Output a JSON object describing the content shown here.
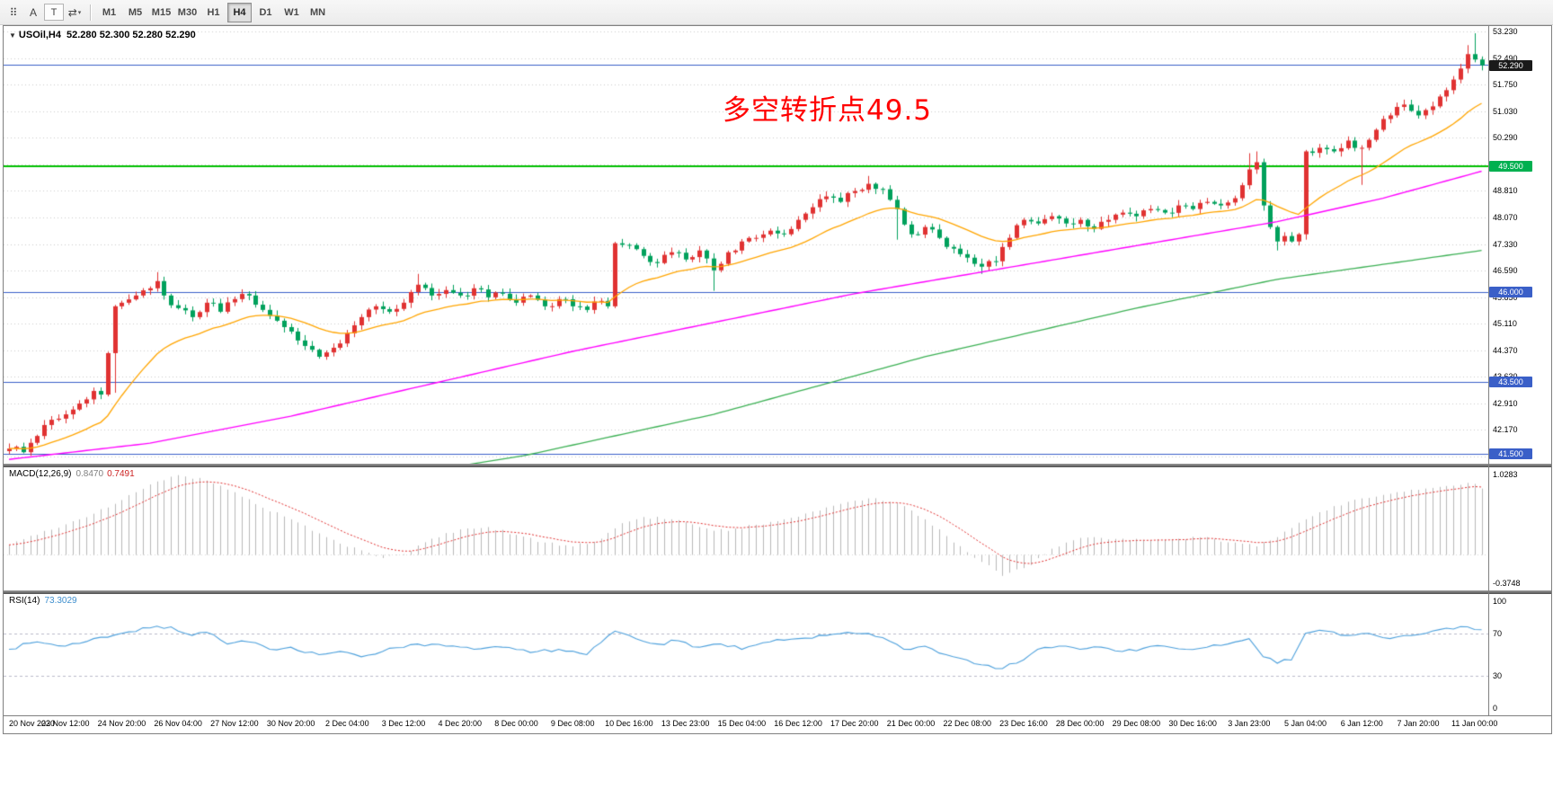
{
  "toolbar": {
    "icons": [
      {
        "name": "toolbar-grip",
        "glyph": "⠿"
      },
      {
        "name": "annotation-tool-icon",
        "glyph": "A"
      },
      {
        "name": "text-tool-icon",
        "glyph": "T",
        "boxed": true
      },
      {
        "name": "symbol-cycle-icon",
        "glyph": "⇄",
        "caret": "▾"
      }
    ],
    "timeframes": [
      {
        "label": "M1"
      },
      {
        "label": "M5"
      },
      {
        "label": "M15"
      },
      {
        "label": "M30"
      },
      {
        "label": "H1"
      },
      {
        "label": "H4",
        "active": true
      },
      {
        "label": "D1"
      },
      {
        "label": "W1"
      },
      {
        "label": "MN"
      }
    ]
  },
  "main_chart": {
    "collapse_icon": "▼",
    "title_symbol": "USOil,H4",
    "title_quote": "52.280 52.300 52.280 52.290",
    "annotation": {
      "text": "多空转折点49.5",
      "color": "#ff0000"
    },
    "axis": {
      "min": 41.43,
      "max": 53.23,
      "labels": [
        "53.230",
        "52.490",
        "51.750",
        "51.030",
        "50.290",
        "",
        "48.810",
        "48.070",
        "47.330",
        "46.590",
        "45.850",
        "45.110",
        "44.370",
        "43.630",
        "42.910",
        "42.170",
        "41.430"
      ]
    },
    "current_price": {
      "value": 52.29,
      "label": "52.290",
      "badge_bg": "#1a1a1a"
    },
    "levels": [
      {
        "price": 52.3,
        "color": "#3a5fc8",
        "width": 1,
        "label": ""
      },
      {
        "price": 49.5,
        "color": "#00c000",
        "width": 2,
        "label": "49.500",
        "badge_bg": "#00b050"
      },
      {
        "price": 46.0,
        "color": "#3a5fc8",
        "width": 1,
        "label": "46.000",
        "badge_bg": "#3a5fc8"
      },
      {
        "price": 43.5,
        "color": "#3a5fc8",
        "width": 1,
        "label": "43.500",
        "badge_bg": "#3a5fc8"
      },
      {
        "price": 41.5,
        "color": "#3a5fc8",
        "width": 1,
        "label": "41.500",
        "badge_bg": "#3a5fc8"
      }
    ],
    "colors": {
      "up": "#e03232",
      "down": "#00a15c",
      "ma_fast": "#ffa500",
      "ma_mid": "#ff00ff",
      "ma_slow": "#3cb054",
      "grid": "#cccccc"
    }
  },
  "chart_data": {
    "type": "candlestick",
    "symbol": "USOil",
    "timeframe": "H4",
    "bars": 210,
    "close_anchors": [
      [
        0,
        41.65
      ],
      [
        2,
        41.55
      ],
      [
        4,
        42.0
      ],
      [
        6,
        42.45
      ],
      [
        8,
        42.6
      ],
      [
        10,
        42.9
      ],
      [
        12,
        43.25
      ],
      [
        13,
        43.15
      ],
      [
        14,
        44.3
      ],
      [
        15,
        45.6
      ],
      [
        16,
        45.7
      ],
      [
        18,
        45.9
      ],
      [
        20,
        46.1
      ],
      [
        21,
        46.3
      ],
      [
        22,
        45.9
      ],
      [
        24,
        45.55
      ],
      [
        26,
        45.3
      ],
      [
        28,
        45.7
      ],
      [
        30,
        45.45
      ],
      [
        32,
        45.8
      ],
      [
        34,
        45.9
      ],
      [
        36,
        45.5
      ],
      [
        38,
        45.2
      ],
      [
        40,
        44.9
      ],
      [
        42,
        44.5
      ],
      [
        44,
        44.2
      ],
      [
        46,
        44.45
      ],
      [
        48,
        44.85
      ],
      [
        50,
        45.3
      ],
      [
        52,
        45.6
      ],
      [
        54,
        45.45
      ],
      [
        56,
        45.7
      ],
      [
        58,
        46.2
      ],
      [
        60,
        45.9
      ],
      [
        62,
        46.05
      ],
      [
        64,
        45.9
      ],
      [
        66,
        46.1
      ],
      [
        68,
        45.85
      ],
      [
        70,
        45.95
      ],
      [
        72,
        45.7
      ],
      [
        74,
        45.9
      ],
      [
        76,
        45.6
      ],
      [
        78,
        45.8
      ],
      [
        80,
        45.6
      ],
      [
        82,
        45.5
      ],
      [
        84,
        45.75
      ],
      [
        85,
        45.6
      ],
      [
        86,
        47.35
      ],
      [
        88,
        47.3
      ],
      [
        90,
        47.0
      ],
      [
        92,
        46.8
      ],
      [
        94,
        47.1
      ],
      [
        96,
        46.9
      ],
      [
        98,
        47.15
      ],
      [
        100,
        46.6
      ],
      [
        102,
        47.1
      ],
      [
        104,
        47.4
      ],
      [
        106,
        47.5
      ],
      [
        108,
        47.7
      ],
      [
        110,
        47.6
      ],
      [
        112,
        48.0
      ],
      [
        114,
        48.35
      ],
      [
        116,
        48.65
      ],
      [
        118,
        48.5
      ],
      [
        120,
        48.8
      ],
      [
        122,
        49.0
      ],
      [
        124,
        48.85
      ],
      [
        126,
        48.3
      ],
      [
        128,
        47.6
      ],
      [
        130,
        47.8
      ],
      [
        132,
        47.5
      ],
      [
        134,
        47.2
      ],
      [
        136,
        46.95
      ],
      [
        138,
        46.7
      ],
      [
        140,
        46.85
      ],
      [
        142,
        47.5
      ],
      [
        144,
        48.0
      ],
      [
        146,
        47.9
      ],
      [
        148,
        48.1
      ],
      [
        150,
        47.9
      ],
      [
        152,
        48.0
      ],
      [
        154,
        47.75
      ],
      [
        156,
        48.0
      ],
      [
        158,
        48.2
      ],
      [
        160,
        48.1
      ],
      [
        162,
        48.3
      ],
      [
        164,
        48.2
      ],
      [
        166,
        48.4
      ],
      [
        168,
        48.3
      ],
      [
        170,
        48.5
      ],
      [
        172,
        48.4
      ],
      [
        174,
        48.6
      ],
      [
        176,
        49.4
      ],
      [
        177,
        49.6
      ],
      [
        178,
        48.4
      ],
      [
        179,
        47.8
      ],
      [
        180,
        47.4
      ],
      [
        181,
        47.55
      ],
      [
        182,
        47.4
      ],
      [
        183,
        47.6
      ],
      [
        184,
        49.9
      ],
      [
        186,
        50.0
      ],
      [
        188,
        49.9
      ],
      [
        190,
        50.2
      ],
      [
        192,
        50.0
      ],
      [
        194,
        50.5
      ],
      [
        196,
        50.9
      ],
      [
        198,
        51.2
      ],
      [
        200,
        50.9
      ],
      [
        202,
        51.15
      ],
      [
        204,
        51.6
      ],
      [
        206,
        52.2
      ],
      [
        207,
        52.6
      ],
      [
        208,
        52.45
      ],
      [
        209,
        52.29
      ]
    ],
    "wick_overrides": [
      {
        "i": 15,
        "low": 43.2
      },
      {
        "i": 21,
        "high": 46.55
      },
      {
        "i": 58,
        "high": 46.5
      },
      {
        "i": 86,
        "low": 45.55
      },
      {
        "i": 100,
        "low": 46.03
      },
      {
        "i": 122,
        "high": 49.22
      },
      {
        "i": 126,
        "low": 47.45
      },
      {
        "i": 138,
        "low": 46.5
      },
      {
        "i": 176,
        "high": 49.85
      },
      {
        "i": 177,
        "high": 49.9
      },
      {
        "i": 180,
        "low": 47.15
      },
      {
        "i": 184,
        "low": 47.45
      },
      {
        "i": 192,
        "low": 48.97
      },
      {
        "i": 207,
        "high": 52.85
      },
      {
        "i": 208,
        "high": 53.18
      }
    ],
    "ma_mid_anchors": [
      [
        0,
        41.35
      ],
      [
        20,
        41.8
      ],
      [
        40,
        42.55
      ],
      [
        60,
        43.45
      ],
      [
        80,
        44.35
      ],
      [
        100,
        45.15
      ],
      [
        120,
        45.95
      ],
      [
        135,
        46.45
      ],
      [
        150,
        46.95
      ],
      [
        165,
        47.45
      ],
      [
        180,
        47.95
      ],
      [
        195,
        48.6
      ],
      [
        209,
        49.35
      ]
    ],
    "ma_slow_anchors": [
      [
        0,
        40.1
      ],
      [
        40,
        40.6
      ],
      [
        60,
        41.05
      ],
      [
        73,
        41.45
      ],
      [
        100,
        42.6
      ],
      [
        130,
        44.2
      ],
      [
        160,
        45.55
      ],
      [
        180,
        46.35
      ],
      [
        209,
        47.15
      ]
    ],
    "macd": {
      "label": "MACD(12,26,9)",
      "value_main": "0.8470",
      "value_signal": "0.7491",
      "axis_max": 1.0283,
      "axis_min": -0.3748,
      "axis_labels": [
        {
          "text": "1.0283",
          "value": 1.0283
        },
        {
          "text": "-0.3748",
          "value": -0.3748
        }
      ],
      "anchors": [
        [
          0,
          0.12
        ],
        [
          5,
          0.3
        ],
        [
          10,
          0.45
        ],
        [
          15,
          0.65
        ],
        [
          20,
          0.9
        ],
        [
          24,
          1.02
        ],
        [
          28,
          0.95
        ],
        [
          32,
          0.8
        ],
        [
          36,
          0.6
        ],
        [
          40,
          0.45
        ],
        [
          45,
          0.22
        ],
        [
          50,
          0.05
        ],
        [
          53,
          -0.05
        ],
        [
          56,
          0.0
        ],
        [
          60,
          0.2
        ],
        [
          64,
          0.32
        ],
        [
          68,
          0.35
        ],
        [
          72,
          0.25
        ],
        [
          76,
          0.15
        ],
        [
          80,
          0.1
        ],
        [
          84,
          0.2
        ],
        [
          87,
          0.4
        ],
        [
          90,
          0.48
        ],
        [
          94,
          0.45
        ],
        [
          98,
          0.35
        ],
        [
          102,
          0.3
        ],
        [
          106,
          0.38
        ],
        [
          110,
          0.45
        ],
        [
          114,
          0.55
        ],
        [
          118,
          0.65
        ],
        [
          122,
          0.72
        ],
        [
          126,
          0.66
        ],
        [
          130,
          0.45
        ],
        [
          134,
          0.15
        ],
        [
          138,
          -0.1
        ],
        [
          141,
          -0.28
        ],
        [
          144,
          -0.18
        ],
        [
          147,
          0.0
        ],
        [
          150,
          0.15
        ],
        [
          154,
          0.22
        ],
        [
          158,
          0.2
        ],
        [
          162,
          0.18
        ],
        [
          166,
          0.2
        ],
        [
          170,
          0.22
        ],
        [
          174,
          0.15
        ],
        [
          177,
          0.1
        ],
        [
          180,
          0.22
        ],
        [
          184,
          0.45
        ],
        [
          188,
          0.62
        ],
        [
          192,
          0.72
        ],
        [
          196,
          0.78
        ],
        [
          200,
          0.83
        ],
        [
          204,
          0.88
        ],
        [
          207,
          0.92
        ],
        [
          209,
          0.847
        ]
      ]
    },
    "rsi": {
      "label": "RSI(14)",
      "value": "73.3029",
      "level_lines": [
        70,
        30
      ],
      "axis_labels": [
        {
          "text": "100",
          "value": 100
        },
        {
          "text": "70",
          "value": 70
        },
        {
          "text": "30",
          "value": 30
        },
        {
          "text": "0",
          "value": 0
        }
      ],
      "anchors": [
        [
          0,
          55
        ],
        [
          4,
          62
        ],
        [
          8,
          58
        ],
        [
          12,
          65
        ],
        [
          16,
          70
        ],
        [
          20,
          75
        ],
        [
          23,
          76
        ],
        [
          26,
          68
        ],
        [
          28,
          71
        ],
        [
          31,
          60
        ],
        [
          34,
          62
        ],
        [
          37,
          55
        ],
        [
          40,
          57
        ],
        [
          44,
          50
        ],
        [
          47,
          53
        ],
        [
          50,
          48
        ],
        [
          54,
          56
        ],
        [
          58,
          60
        ],
        [
          62,
          58
        ],
        [
          66,
          55
        ],
        [
          70,
          57
        ],
        [
          74,
          52
        ],
        [
          78,
          55
        ],
        [
          82,
          50
        ],
        [
          86,
          72
        ],
        [
          89,
          65
        ],
        [
          92,
          60
        ],
        [
          95,
          63
        ],
        [
          98,
          57
        ],
        [
          101,
          60
        ],
        [
          104,
          55
        ],
        [
          108,
          62
        ],
        [
          112,
          65
        ],
        [
          116,
          68
        ],
        [
          120,
          70
        ],
        [
          124,
          66
        ],
        [
          127,
          55
        ],
        [
          130,
          58
        ],
        [
          133,
          50
        ],
        [
          136,
          45
        ],
        [
          139,
          40
        ],
        [
          141,
          37
        ],
        [
          143,
          42
        ],
        [
          146,
          55
        ],
        [
          149,
          58
        ],
        [
          152,
          55
        ],
        [
          155,
          57
        ],
        [
          158,
          53
        ],
        [
          161,
          56
        ],
        [
          164,
          58
        ],
        [
          167,
          55
        ],
        [
          170,
          57
        ],
        [
          173,
          60
        ],
        [
          176,
          65
        ],
        [
          178,
          48
        ],
        [
          180,
          42
        ],
        [
          182,
          45
        ],
        [
          184,
          70
        ],
        [
          187,
          72
        ],
        [
          190,
          68
        ],
        [
          193,
          70
        ],
        [
          196,
          65
        ],
        [
          199,
          68
        ],
        [
          202,
          72
        ],
        [
          205,
          74
        ],
        [
          207,
          76
        ],
        [
          209,
          73.3
        ]
      ]
    }
  },
  "time_axis": {
    "labels": [
      "20 Nov 2020",
      "23 Nov 12:00",
      "24 Nov 20:00",
      "26 Nov 04:00",
      "27 Nov 12:00",
      "30 Nov 20:00",
      "2 Dec 04:00",
      "3 Dec 12:00",
      "4 Dec 20:00",
      "8 Dec 00:00",
      "9 Dec 08:00",
      "10 Dec 16:00",
      "13 Dec 23:00",
      "15 Dec 04:00",
      "16 Dec 12:00",
      "17 Dec 20:00",
      "21 Dec 00:00",
      "22 Dec 08:00",
      "23 Dec 16:00",
      "28 Dec 00:00",
      "29 Dec 08:00",
      "30 Dec 16:00",
      "3 Jan 23:00",
      "5 Jan 04:00",
      "6 Jan 12:00",
      "7 Jan 20:00",
      "11 Jan 00:00"
    ]
  }
}
